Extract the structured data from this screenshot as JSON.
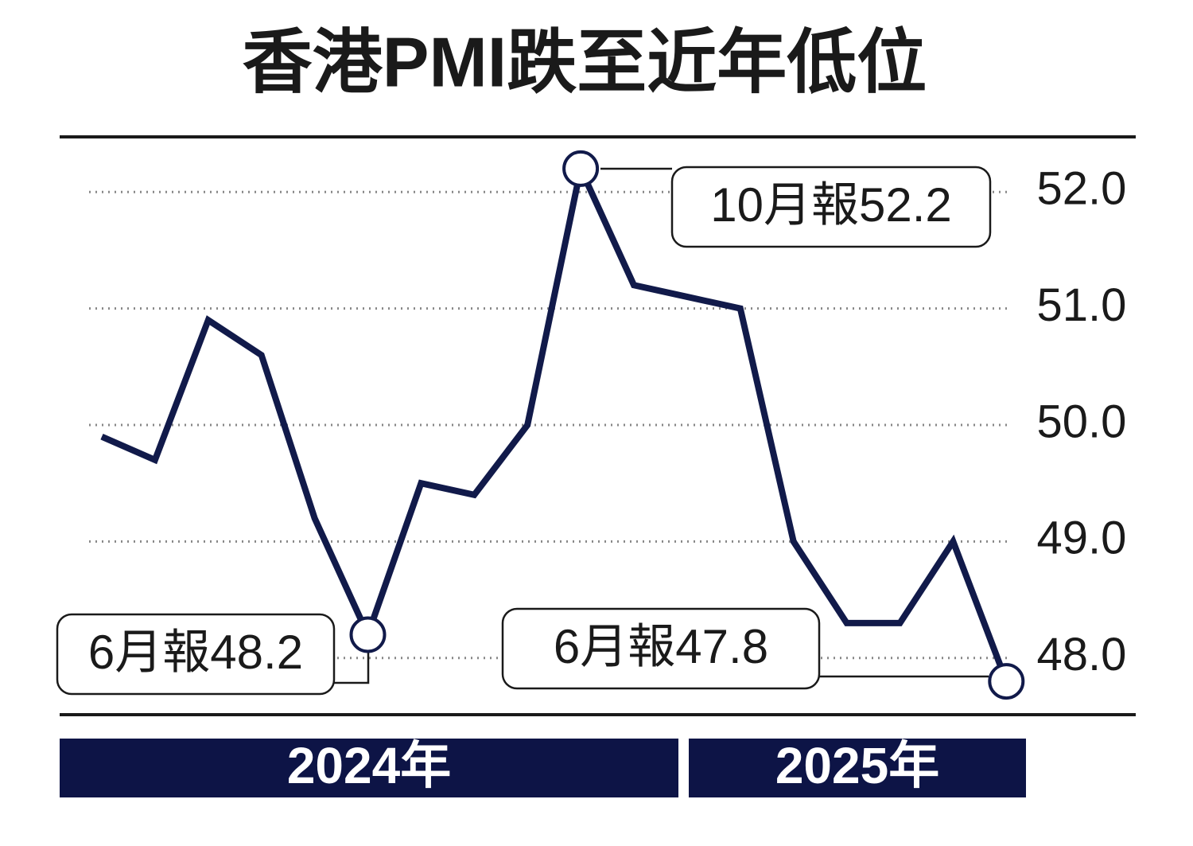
{
  "chart_data": {
    "type": "line",
    "title": "香港PMI跌至近年低位",
    "categories": [
      null,
      null,
      null,
      null,
      null,
      null,
      null,
      null,
      null,
      null,
      null,
      null,
      null,
      null,
      null,
      null,
      null,
      null
    ],
    "series": [
      {
        "color": "#111a4a",
        "values": [
          49.9,
          49.7,
          50.9,
          50.6,
          49.2,
          48.2,
          49.5,
          49.4,
          50.0,
          52.2,
          51.2,
          51.1,
          51.0,
          49.0,
          48.3,
          48.3,
          49.0,
          47.8
        ]
      }
    ],
    "ylim": [
      47.5,
      52.5
    ],
    "yticks": [
      {
        "value": 48,
        "label": "48.0"
      },
      {
        "value": 49,
        "label": "49.0"
      },
      {
        "value": 50,
        "label": "50.0"
      },
      {
        "value": 51,
        "label": "51.0"
      },
      {
        "value": 52,
        "label": "52.0"
      }
    ],
    "grid": true,
    "annotations": [
      "10月報52.2",
      "6月報48.2",
      "6月報47.8"
    ],
    "year_labels": [
      "2024年",
      "2025年"
    ]
  }
}
